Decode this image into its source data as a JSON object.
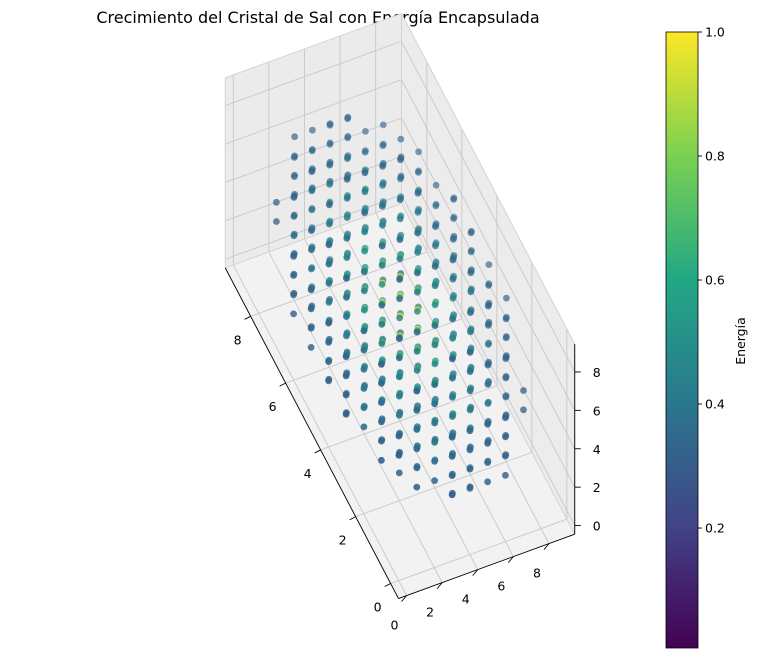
{
  "chart_data": {
    "type": "scatter",
    "title": "Crecimiento del Cristal de Sal con Energía Encapsulada",
    "xlabel": "",
    "ylabel": "",
    "zlabel": "",
    "projection": "3d",
    "xlim": [
      -0.45,
      9.45
    ],
    "ylim": [
      -0.45,
      9.45
    ],
    "zlim": [
      -0.45,
      9.45
    ],
    "x_ticks": [
      "0",
      "2",
      "4",
      "6",
      "8"
    ],
    "y_ticks": [
      "0",
      "2",
      "4",
      "6",
      "8"
    ],
    "z_ticks": [
      "0",
      "2",
      "4",
      "6",
      "8"
    ],
    "grid": true,
    "point_generation": "integer lattice points within radius 5 of center (4.5, 4.5, 4.5)",
    "lattice_range": [
      0,
      9
    ],
    "sphere_center": [
      4.5,
      4.5,
      4.5
    ],
    "sphere_radius": 5,
    "energy_rule": "energy = 1 / (1 + distance to center); normalized to max 1",
    "colorbar": {
      "label": "Energía",
      "colormap": "viridis",
      "ticks": [
        "0.2",
        "0.4",
        "0.6",
        "0.8",
        "1.0"
      ],
      "range": [
        0.0,
        1.0
      ]
    },
    "colormap_stops": [
      "#440154",
      "#414487",
      "#2a788e",
      "#22a884",
      "#7ad151",
      "#fde725"
    ],
    "pane_color": "#f2f2f2",
    "grid_color": "#c8c8c8",
    "marker_alpha": 0.55
  }
}
